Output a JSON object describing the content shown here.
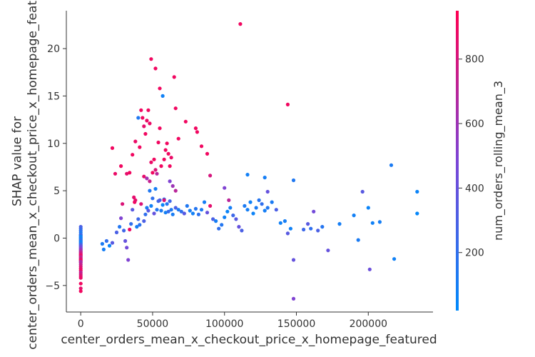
{
  "chart_data": {
    "type": "scatter",
    "title": "",
    "xlabel": "center_orders_mean_x_checkout_price_x_homepage_featured",
    "ylabel": "SHAP value for\ncenter_orders_mean_x_checkout_price_x_homepage_featured",
    "xlim": [
      -10000,
      245000
    ],
    "ylim": [
      -7.8,
      24
    ],
    "x_ticks": [
      0,
      50000,
      100000,
      150000,
      200000
    ],
    "x_tick_labels": [
      "0",
      "50000",
      "100000",
      "150000",
      "200000"
    ],
    "y_ticks": [
      -5,
      0,
      5,
      10,
      15,
      20
    ],
    "y_tick_labels": [
      "−5",
      "0",
      "5",
      "10",
      "15",
      "20"
    ],
    "grid": false,
    "colorbar": {
      "label": "num_orders_rolling_mean_3",
      "range": [
        20,
        950
      ],
      "ticks": [
        200,
        400,
        600,
        800
      ],
      "tick_labels": [
        "200",
        "400",
        "600",
        "800"
      ],
      "color_low": "#008afb",
      "color_mid": "#7c45d6",
      "color_high": "#ff0052"
    },
    "points": [
      [
        0,
        1.2,
        300
      ],
      [
        0,
        1.0,
        250
      ],
      [
        0,
        0.8,
        200
      ],
      [
        0,
        0.6,
        150
      ],
      [
        0,
        0.4,
        100
      ],
      [
        0,
        0.3,
        350
      ],
      [
        0,
        0.2,
        80
      ],
      [
        0,
        0.1,
        60
      ],
      [
        0,
        0.0,
        120
      ],
      [
        0,
        -0.1,
        50
      ],
      [
        0,
        -0.2,
        220
      ],
      [
        0,
        -0.3,
        180
      ],
      [
        0,
        -0.4,
        70
      ],
      [
        0,
        -0.5,
        90
      ],
      [
        0,
        -0.6,
        160
      ],
      [
        0,
        -0.7,
        260
      ],
      [
        0,
        -0.8,
        320
      ],
      [
        0,
        -0.9,
        400
      ],
      [
        0,
        -1.0,
        450
      ],
      [
        0,
        -1.1,
        500
      ],
      [
        0,
        -1.2,
        550
      ],
      [
        0,
        -1.3,
        600
      ],
      [
        0,
        -1.4,
        650
      ],
      [
        0,
        -1.5,
        700
      ],
      [
        0,
        -1.6,
        750
      ],
      [
        0,
        -1.7,
        800
      ],
      [
        0,
        -1.8,
        850
      ],
      [
        0,
        -1.9,
        900
      ],
      [
        0,
        -2.0,
        700
      ],
      [
        0,
        -2.1,
        760
      ],
      [
        0,
        -2.2,
        820
      ],
      [
        0,
        -2.3,
        880
      ],
      [
        0,
        -2.4,
        900
      ],
      [
        0,
        -2.5,
        620
      ],
      [
        0,
        -2.6,
        680
      ],
      [
        0,
        -2.8,
        740
      ],
      [
        0,
        -3.0,
        800
      ],
      [
        0,
        -3.2,
        860
      ],
      [
        0,
        -3.4,
        900
      ],
      [
        0,
        -3.6,
        720
      ],
      [
        0,
        -3.8,
        780
      ],
      [
        0,
        -4.0,
        840
      ],
      [
        0,
        -4.2,
        880
      ],
      [
        0,
        -4.8,
        900
      ],
      [
        0,
        -5.3,
        860
      ],
      [
        0,
        -5.6,
        900
      ],
      [
        15000,
        -0.6,
        120
      ],
      [
        16000,
        -1.2,
        100
      ],
      [
        18000,
        -0.3,
        200
      ],
      [
        20000,
        -0.8,
        60
      ],
      [
        22000,
        -0.5,
        350
      ],
      [
        25000,
        0.6,
        300
      ],
      [
        27000,
        1.2,
        150
      ],
      [
        28000,
        2.1,
        500
      ],
      [
        29000,
        3.6,
        820
      ],
      [
        30000,
        0.8,
        260
      ],
      [
        31000,
        -0.3,
        400
      ],
      [
        32000,
        -1.0,
        450
      ],
      [
        33000,
        -2.3,
        500
      ],
      [
        34000,
        0.9,
        880
      ],
      [
        35000,
        1.5,
        200
      ],
      [
        36000,
        3.0,
        350
      ],
      [
        37000,
        4.3,
        860
      ],
      [
        37500,
        3.8,
        900
      ],
      [
        38000,
        4.0,
        860
      ],
      [
        39000,
        1.2,
        100
      ],
      [
        40000,
        2.0,
        250
      ],
      [
        41000,
        1.4,
        180
      ],
      [
        42000,
        3.6,
        820
      ],
      [
        44000,
        1.8,
        300
      ],
      [
        45000,
        2.5,
        200
      ],
      [
        46000,
        3.2,
        120
      ],
      [
        47000,
        2.9,
        350
      ],
      [
        48000,
        5.0,
        140
      ],
      [
        49000,
        3.4,
        80
      ],
      [
        50000,
        4.2,
        200
      ],
      [
        51000,
        2.6,
        400
      ],
      [
        52000,
        5.2,
        100
      ],
      [
        53000,
        3.0,
        150
      ],
      [
        54000,
        3.9,
        250
      ],
      [
        55000,
        4.0,
        300
      ],
      [
        56000,
        2.9,
        120
      ],
      [
        57000,
        3.5,
        60
      ],
      [
        58000,
        4.1,
        180
      ],
      [
        59000,
        2.7,
        90
      ],
      [
        60000,
        3.6,
        160
      ],
      [
        61000,
        2.8,
        220
      ],
      [
        62000,
        3.9,
        260
      ],
      [
        63000,
        3.0,
        130
      ],
      [
        64000,
        2.5,
        110
      ],
      [
        66000,
        3.2,
        300
      ],
      [
        68000,
        3.0,
        120
      ],
      [
        70000,
        2.8,
        200
      ],
      [
        72000,
        2.6,
        350
      ],
      [
        74000,
        3.4,
        140
      ],
      [
        76000,
        2.9,
        100
      ],
      [
        78000,
        2.6,
        90
      ],
      [
        80000,
        3.1,
        160
      ],
      [
        82000,
        2.5,
        180
      ],
      [
        84000,
        3.0,
        130
      ],
      [
        86000,
        3.8,
        100
      ],
      [
        88000,
        2.7,
        400
      ],
      [
        90000,
        3.4,
        850
      ],
      [
        92000,
        2.0,
        300
      ],
      [
        94000,
        1.8,
        100
      ],
      [
        96000,
        1.0,
        200
      ],
      [
        98000,
        1.4,
        150
      ],
      [
        100000,
        2.2,
        80
      ],
      [
        102000,
        2.8,
        60
      ],
      [
        104000,
        3.2,
        100
      ],
      [
        106000,
        2.4,
        250
      ],
      [
        108000,
        2.0,
        350
      ],
      [
        110000,
        1.2,
        400
      ],
      [
        112000,
        0.8,
        300
      ],
      [
        114000,
        3.4,
        120
      ],
      [
        116000,
        3.0,
        100
      ],
      [
        118000,
        3.8,
        80
      ],
      [
        120000,
        2.6,
        70
      ],
      [
        122000,
        3.2,
        120
      ],
      [
        124000,
        4.0,
        160
      ],
      [
        126000,
        3.6,
        200
      ],
      [
        128000,
        2.9,
        100
      ],
      [
        130000,
        3.2,
        140
      ],
      [
        133000,
        3.8,
        120
      ],
      [
        136000,
        3.0,
        300
      ],
      [
        139000,
        1.6,
        80
      ],
      [
        142000,
        1.8,
        100
      ],
      [
        144000,
        0.5,
        350
      ],
      [
        146000,
        1.0,
        80
      ],
      [
        155000,
        0.9,
        250
      ],
      [
        158000,
        1.5,
        350
      ],
      [
        162000,
        2.8,
        450
      ],
      [
        165000,
        0.8,
        300
      ],
      [
        168000,
        1.2,
        160
      ],
      [
        172000,
        -1.3,
        400
      ],
      [
        180000,
        1.5,
        100
      ],
      [
        190000,
        2.4,
        90
      ],
      [
        193000,
        -0.2,
        120
      ],
      [
        196000,
        4.9,
        350
      ],
      [
        200000,
        3.2,
        60
      ],
      [
        201000,
        -3.3,
        420
      ],
      [
        203000,
        1.6,
        80
      ],
      [
        208000,
        1.7,
        100
      ],
      [
        216000,
        7.7,
        120
      ],
      [
        218000,
        -2.2,
        80
      ],
      [
        234000,
        4.9,
        60
      ],
      [
        234000,
        2.6,
        40
      ],
      [
        22000,
        9.5,
        900
      ],
      [
        24000,
        6.8,
        880
      ],
      [
        28000,
        7.6,
        900
      ],
      [
        32000,
        6.8,
        860
      ],
      [
        34000,
        6.9,
        900
      ],
      [
        36000,
        8.8,
        900
      ],
      [
        38000,
        10.2,
        880
      ],
      [
        40000,
        12.7,
        140
      ],
      [
        41000,
        9.6,
        900
      ],
      [
        42000,
        13.5,
        900
      ],
      [
        43000,
        12.7,
        900
      ],
      [
        44000,
        11.8,
        860
      ],
      [
        45000,
        11.0,
        900
      ],
      [
        46000,
        12.4,
        880
      ],
      [
        47000,
        13.5,
        900
      ],
      [
        48000,
        12.1,
        880
      ],
      [
        49000,
        8.0,
        880
      ],
      [
        50000,
        6.9,
        900
      ],
      [
        51000,
        8.3,
        900
      ],
      [
        52000,
        7.2,
        820
      ],
      [
        53000,
        6.8,
        700
      ],
      [
        54000,
        10.1,
        900
      ],
      [
        55000,
        11.6,
        900
      ],
      [
        56000,
        7.6,
        900
      ],
      [
        57000,
        15.0,
        80
      ],
      [
        58000,
        8.3,
        900
      ],
      [
        59000,
        9.3,
        900
      ],
      [
        60000,
        10.0,
        900
      ],
      [
        61000,
        8.9,
        900
      ],
      [
        62000,
        7.6,
        900
      ],
      [
        63000,
        8.5,
        880
      ],
      [
        65000,
        17.0,
        900
      ],
      [
        66000,
        13.7,
        900
      ],
      [
        68000,
        10.5,
        900
      ],
      [
        73000,
        12.3,
        900
      ],
      [
        80000,
        11.6,
        900
      ],
      [
        81000,
        11.2,
        900
      ],
      [
        84000,
        9.7,
        900
      ],
      [
        88000,
        8.9,
        900
      ],
      [
        90000,
        6.6,
        800
      ],
      [
        44000,
        6.5,
        860
      ],
      [
        46000,
        6.3,
        620
      ],
      [
        48000,
        6.0,
        740
      ],
      [
        49000,
        18.9,
        900
      ],
      [
        52000,
        17.9,
        900
      ],
      [
        55000,
        15.8,
        900
      ],
      [
        58000,
        4.0,
        820
      ],
      [
        62000,
        6.0,
        500
      ],
      [
        64000,
        5.5,
        600
      ],
      [
        66000,
        5.0,
        700
      ],
      [
        100000,
        5.3,
        500
      ],
      [
        103000,
        4.0,
        700
      ],
      [
        111000,
        22.6,
        900
      ],
      [
        130000,
        4.9,
        400
      ],
      [
        144000,
        14.1,
        900
      ],
      [
        148000,
        6.1,
        140
      ],
      [
        148000,
        -2.3,
        400
      ],
      [
        148000,
        -6.4,
        500
      ],
      [
        116000,
        6.7,
        90
      ],
      [
        128000,
        6.4,
        100
      ],
      [
        160000,
        1.0,
        200
      ]
    ]
  }
}
